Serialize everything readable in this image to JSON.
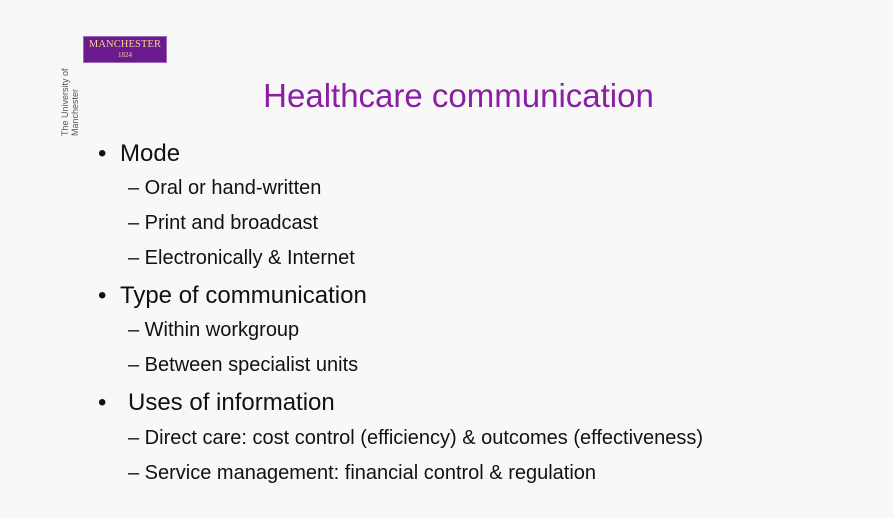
{
  "logo": {
    "name": "MANCHESTER",
    "year": "1824",
    "university": "The University of Manchester"
  },
  "title": "Healthcare communication",
  "sections": [
    {
      "bullet": "•",
      "heading": "Mode",
      "items": [
        "– Oral or hand-written",
        "– Print and broadcast",
        "– Electronically & Internet"
      ]
    },
    {
      "bullet": "•",
      "heading": "Type of communication",
      "items": [
        "– Within workgroup",
        "– Between specialist units"
      ]
    },
    {
      "bullet": "•",
      "heading": "Uses of information",
      "items": [
        "– Direct care: cost control (efficiency) & outcomes (effectiveness)",
        "– Service management: financial control & regulation"
      ]
    }
  ],
  "colors": {
    "title": "#8a1fa2",
    "logo_bg": "#6b1b8f",
    "logo_text": "#f1d48a"
  }
}
